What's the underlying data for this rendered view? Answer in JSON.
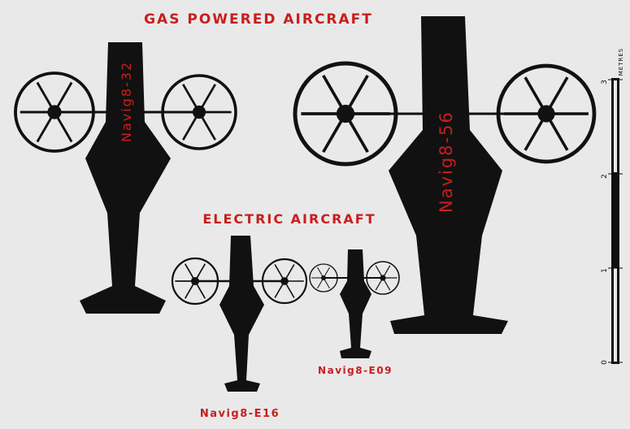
{
  "headings": {
    "gas": "GAS POWERED AIRCRAFT",
    "electric": "ELECTRIC AIRCRAFT"
  },
  "aircraft": [
    {
      "model": "Navig8-32",
      "power": "gas"
    },
    {
      "model": "Navig8-56",
      "power": "gas"
    },
    {
      "model": "Navig8-E16",
      "power": "electric"
    },
    {
      "model": "Navig8-E09",
      "power": "electric"
    }
  ],
  "scale": {
    "unit": "METRES",
    "ticks": [
      "0",
      "1",
      "2",
      "3"
    ]
  },
  "colors": {
    "background": "#e9e9e9",
    "aircraft": "#111111",
    "label": "#c81e1e"
  }
}
